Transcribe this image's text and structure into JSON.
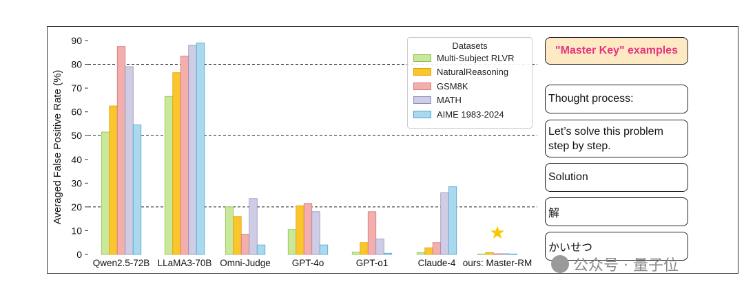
{
  "chart_data": {
    "type": "bar",
    "ylabel": "Averaged False Positive Rate (%)",
    "xlabel": "",
    "ylim": [
      0,
      90
    ],
    "yticks": [
      0,
      10,
      20,
      30,
      40,
      50,
      60,
      70,
      80,
      90
    ],
    "reference_lines": [
      20,
      50,
      80
    ],
    "legend_title": "Datasets",
    "legend_position": "top-right",
    "categories": [
      "Qwen2.5-72B",
      "LLaMA3-70B",
      "Omni-Judge",
      "GPT-4o",
      "GPT-o1",
      "Claude-4",
      "ours: Master-RM"
    ],
    "series": [
      {
        "name": "Multi-Subject RLVR",
        "color": "#c9e89a",
        "edge": "#8cc04e",
        "values": [
          51.5,
          66.5,
          20,
          10.5,
          1,
          0.8,
          0.2
        ]
      },
      {
        "name": "NaturalReasoning",
        "color": "#fbc52d",
        "edge": "#e0a200",
        "values": [
          62.5,
          76.5,
          16,
          20.5,
          5,
          2.8,
          0.8
        ]
      },
      {
        "name": "GSM8K",
        "color": "#f3aeae",
        "edge": "#d47676",
        "values": [
          87.5,
          83.5,
          8.5,
          21.5,
          18,
          5,
          0.3
        ]
      },
      {
        "name": "MATH",
        "color": "#cfcde6",
        "edge": "#8f8cb8",
        "values": [
          79,
          88,
          23.5,
          18,
          6.5,
          26,
          0.3
        ]
      },
      {
        "name": "AIME 1983-2024",
        "color": "#a9d8ef",
        "edge": "#4ba5d1",
        "values": [
          54.5,
          89,
          4,
          4,
          0.5,
          28.5,
          0.2
        ]
      }
    ],
    "annotation_symbol": "★",
    "annotation_color": "#f5c800"
  },
  "panel": {
    "title": "\"Master Key\" examples",
    "items": [
      "Thought process:",
      "Let’s solve this problem step by step.",
      "Solution",
      "解",
      "かいせつ"
    ]
  },
  "watermark": {
    "text": "公众号 · 量子位"
  }
}
